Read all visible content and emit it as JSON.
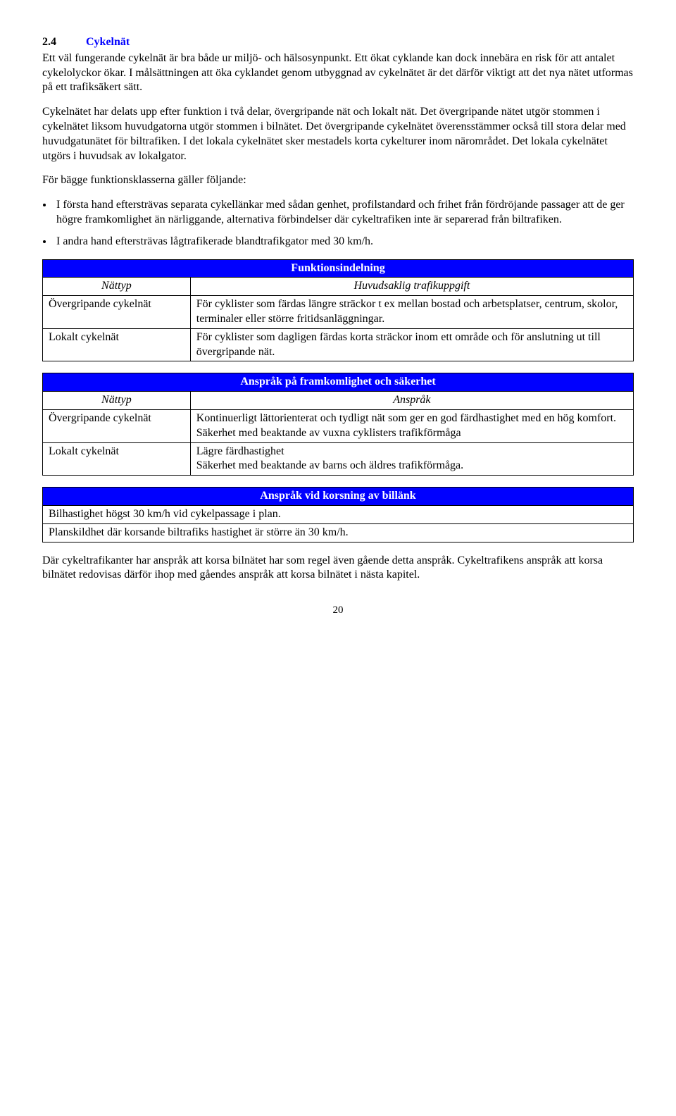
{
  "heading": {
    "number": "2.4",
    "title": "Cykelnät"
  },
  "paragraphs": {
    "p1": "Ett väl fungerande cykelnät är bra både ur miljö- och hälsosynpunkt. Ett ökat cyklande kan dock innebära en risk för att antalet cykelolyckor ökar. I målsättningen att öka cyklandet genom utbyggnad av cykelnätet är det därför viktigt att det nya nätet utformas på ett trafiksäkert sätt.",
    "p2": "Cykelnätet har delats upp efter funktion i två delar, övergripande nät och lokalt nät. Det övergripande nätet utgör stommen i cykelnätet liksom huvudgatorna utgör stommen i bilnätet. Det övergripande cykelnätet överensstämmer också till stora delar med huvudgatunätet för biltrafiken. I det lokala cykelnätet sker mestadels korta cykelturer inom närområdet. Det lokala cykelnätet utgörs i huvudsak av lokalgator.",
    "p3": "För bägge funktionsklasserna gäller följande:",
    "p4": "Där cykeltrafikanter har anspråk att korsa bilnätet har som regel även gående detta anspråk. Cykeltrafikens anspråk att korsa bilnätet redovisas därför ihop med gåendes anspråk att korsa bilnätet i nästa kapitel."
  },
  "bullets": {
    "b1": "I första hand eftersträvas separata cykellänkar med sådan genhet, profilstandard och frihet från fördröjande passager att de ger högre framkomlighet än närliggande, alternativa förbindelser där cykeltrafiken inte är separerad från biltrafiken.",
    "b2": "I andra hand eftersträvas lågtrafikerade blandtrafikgator med 30 km/h."
  },
  "table1": {
    "title": "Funktionsindelning",
    "col1_label": "Nättyp",
    "col2_label": "Huvudsaklig trafikuppgift",
    "rows": [
      {
        "c1": "Övergripande cykelnät",
        "c2": "För cyklister som färdas längre sträckor t ex mellan bostad och arbetsplatser, centrum, skolor, terminaler eller större fritidsanläggningar."
      },
      {
        "c1": "Lokalt cykelnät",
        "c2": "För cyklister som dagligen färdas korta sträckor inom ett område och för anslutning ut till övergripande nät."
      }
    ]
  },
  "table2": {
    "title": "Anspråk på framkomlighet och säkerhet",
    "col1_label": "Nättyp",
    "col2_label": "Anspråk",
    "rows": [
      {
        "c1": "Övergripande cykelnät",
        "c2": "Kontinuerligt lättorienterat och tydligt nät som ger en god färdhastighet med en hög komfort.\nSäkerhet med beaktande av vuxna cyklisters trafikförmåga"
      },
      {
        "c1": "Lokalt cykelnät",
        "c2": "Lägre färdhastighet\nSäkerhet med beaktande av barns och äldres trafikförmåga."
      }
    ]
  },
  "table3": {
    "title": "Anspråk vid korsning av billänk",
    "rows": [
      {
        "c1": "Bilhastighet högst 30 km/h vid cykelpassage i plan."
      },
      {
        "c1": "Planskildhet där korsande biltrafiks hastighet är större än 30 km/h."
      }
    ]
  },
  "page_number": "20"
}
